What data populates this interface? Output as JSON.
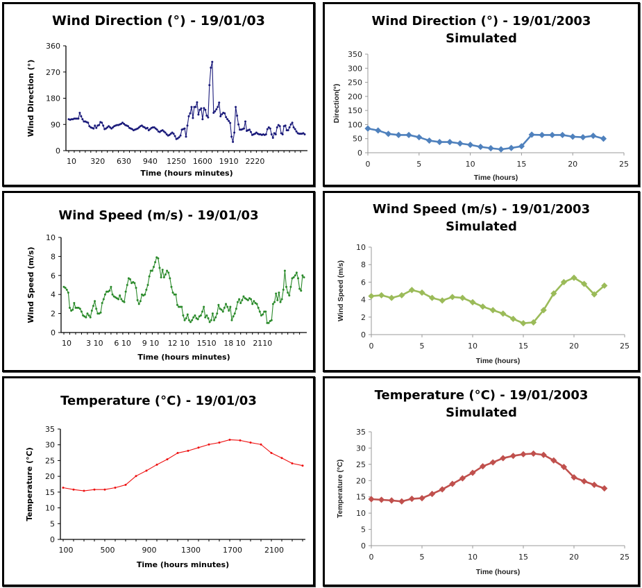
{
  "chart_data": [
    {
      "id": "wd_obs",
      "type": "line",
      "title": "Wind Direction (°) - 19/01/03",
      "xlabel": "Time (hours minutes)",
      "ylabel": "Wind Direction (°)",
      "ylim": [
        0,
        360
      ],
      "yticks": [
        0,
        90,
        180,
        270,
        360
      ],
      "xtick_labels": [
        "10",
        "320",
        "630",
        "940",
        "1250",
        "1600",
        "1910",
        "2220"
      ],
      "color": "#1a1a7a",
      "interval_minutes": 10,
      "series": [
        {
          "name": "Observed",
          "values": [
            108,
            106,
            108,
            108,
            110,
            110,
            110,
            110,
            130,
            118,
            108,
            100,
            100,
            98,
            96,
            84,
            80,
            78,
            76,
            86,
            78,
            86,
            88,
            98,
            96,
            86,
            74,
            76,
            80,
            84,
            80,
            76,
            80,
            84,
            86,
            88,
            88,
            90,
            92,
            96,
            92,
            88,
            86,
            84,
            78,
            76,
            74,
            70,
            72,
            74,
            76,
            80,
            84,
            86,
            82,
            80,
            76,
            78,
            70,
            74,
            78,
            80,
            80,
            76,
            72,
            66,
            64,
            68,
            70,
            66,
            62,
            56,
            52,
            54,
            58,
            62,
            58,
            50,
            40,
            42,
            46,
            52,
            72,
            74,
            76,
            48,
            86,
            118,
            128,
            150,
            112,
            150,
            150,
            166,
            124,
            140,
            145,
            108,
            146,
            140,
            120,
            114,
            225,
            285,
            305,
            130,
            135,
            142,
            150,
            165,
            118,
            125,
            130,
            128,
            115,
            108,
            102,
            95,
            48,
            30,
            62,
            150,
            120,
            90,
            72,
            72,
            74,
            76,
            100,
            68,
            70,
            72,
            64,
            54,
            56,
            58,
            62,
            58,
            56,
            56,
            54,
            56,
            54,
            56,
            74,
            80,
            76,
            56,
            44,
            60,
            56,
            80,
            88,
            84,
            60,
            56,
            84,
            86,
            70,
            70,
            80,
            90,
            96,
            80,
            74,
            66,
            60,
            58,
            58,
            58,
            60,
            56
          ]
        }
      ]
    },
    {
      "id": "wd_sim",
      "type": "line",
      "title": "Wind Direction (°) - 19/01/2003",
      "subtitle": "Simulated",
      "xlabel": "Time (hours)",
      "ylabel": "Direction(°)",
      "xlim": [
        0,
        25
      ],
      "ylim": [
        0,
        350
      ],
      "xticks": [
        0,
        5,
        10,
        15,
        20,
        25
      ],
      "yticks": [
        0,
        50,
        100,
        150,
        200,
        250,
        300,
        350
      ],
      "color": "#4f81bd",
      "x": [
        0,
        1,
        2,
        3,
        4,
        5,
        6,
        7,
        8,
        9,
        10,
        11,
        12,
        13,
        14,
        15,
        16,
        17,
        18,
        19,
        20,
        21,
        22,
        23
      ],
      "series": [
        {
          "name": "Simulated",
          "values": [
            86,
            79,
            67,
            63,
            63,
            55,
            43,
            38,
            38,
            33,
            28,
            21,
            16,
            12,
            17,
            23,
            64,
            63,
            63,
            63,
            57,
            55,
            60,
            50
          ]
        }
      ]
    },
    {
      "id": "ws_obs",
      "type": "line",
      "title": "Wind Speed (m/s) - 19/01/03",
      "xlabel": "Time (hours minutes)",
      "ylabel": "Wind Speed (m/s)",
      "ylim": [
        0,
        10
      ],
      "yticks": [
        0,
        2,
        4,
        6,
        8,
        10
      ],
      "xtick_labels": [
        "10",
        "3 10",
        "6 10",
        "9 10",
        "12 10",
        "1510",
        "18 10",
        "2110"
      ],
      "color": "#2a8a2a",
      "interval_minutes": 10,
      "series": [
        {
          "name": "Observed",
          "values": [
            4.8,
            4.7,
            4.5,
            4.2,
            2.6,
            2.3,
            2.4,
            3.1,
            2.6,
            2.6,
            2.6,
            2.5,
            2.2,
            1.8,
            1.7,
            1.6,
            2.0,
            1.8,
            1.6,
            2.3,
            2.8,
            3.3,
            2.5,
            2.0,
            2.0,
            2.1,
            3.1,
            3.5,
            4.0,
            4.3,
            4.3,
            4.4,
            4.8,
            4.0,
            3.8,
            3.7,
            3.6,
            3.5,
            3.9,
            3.5,
            3.3,
            3.2,
            4.3,
            5.0,
            5.7,
            5.6,
            5.2,
            5.3,
            5.2,
            4.7,
            3.4,
            3.0,
            3.3,
            4.0,
            3.9,
            4.0,
            4.5,
            5.0,
            5.9,
            6.5,
            6.5,
            6.9,
            7.4,
            7.9,
            7.8,
            6.8,
            5.8,
            6.6,
            5.8,
            6.1,
            6.5,
            6.3,
            5.7,
            4.8,
            4.2,
            4.0,
            4.0,
            2.9,
            2.7,
            2.7,
            2.7,
            1.8,
            1.3,
            1.5,
            1.9,
            1.3,
            1.1,
            1.3,
            1.6,
            1.8,
            1.5,
            1.4,
            1.7,
            1.8,
            2.2,
            2.7,
            1.6,
            1.8,
            1.5,
            1.1,
            1.3,
            2.0,
            1.3,
            1.6,
            2.0,
            2.9,
            2.5,
            2.4,
            2.2,
            2.6,
            3.0,
            2.7,
            2.3,
            2.7,
            1.3,
            1.7,
            2.0,
            2.5,
            3.2,
            3.5,
            3.1,
            3.4,
            3.8,
            3.6,
            3.5,
            3.4,
            3.6,
            3.5,
            3.0,
            3.3,
            3.1,
            3.0,
            2.6,
            2.2,
            1.8,
            1.9,
            2.2,
            2.2,
            1.0,
            1.0,
            1.2,
            1.3,
            3.0,
            3.2,
            4.1,
            3.4,
            4.2,
            3.2,
            3.5,
            4.5,
            6.5,
            4.8,
            4.2,
            3.9,
            4.8,
            5.7,
            5.8,
            6.0,
            6.3,
            5.7,
            4.6,
            4.4,
            6.0,
            5.8
          ]
        }
      ]
    },
    {
      "id": "ws_sim",
      "type": "line",
      "title": "Wind Speed (m/s) - 19/01/2003",
      "subtitle": "Simulated",
      "xlabel": "Time (hours)",
      "ylabel": "Wind Speed (m/s)",
      "xlim": [
        0,
        25
      ],
      "ylim": [
        0,
        10
      ],
      "xticks": [
        0,
        5,
        10,
        15,
        20,
        25
      ],
      "yticks": [
        0,
        2,
        4,
        6,
        8,
        10
      ],
      "color": "#9bbb59",
      "x": [
        0,
        1,
        2,
        3,
        4,
        5,
        6,
        7,
        8,
        9,
        10,
        11,
        12,
        13,
        14,
        15,
        16,
        17,
        18,
        19,
        20,
        21,
        22,
        23
      ],
      "series": [
        {
          "name": "Simulated",
          "values": [
            4.4,
            4.5,
            4.2,
            4.5,
            5.1,
            4.8,
            4.2,
            3.9,
            4.3,
            4.2,
            3.7,
            3.2,
            2.8,
            2.4,
            1.8,
            1.3,
            1.4,
            2.8,
            4.7,
            6.0,
            6.5,
            5.8,
            4.6,
            5.6
          ]
        }
      ]
    },
    {
      "id": "t_obs",
      "type": "line",
      "title": "Temperature (°C) - 19/01/03",
      "xlabel": "Time (hours minutes)",
      "ylabel": "Temperature (°C)",
      "ylim": [
        0,
        35
      ],
      "yticks": [
        0,
        5,
        10,
        15,
        20,
        25,
        30,
        35
      ],
      "xtick_labels": [
        "100",
        "500",
        "900",
        "1300",
        "1700",
        "2100"
      ],
      "color": "#ee1111",
      "x": [
        100,
        200,
        300,
        400,
        500,
        600,
        700,
        800,
        900,
        1000,
        1100,
        1200,
        1300,
        1400,
        1500,
        1600,
        1700,
        1800,
        1900,
        2000,
        2100,
        2200,
        2300,
        2400
      ],
      "series": [
        {
          "name": "Observed",
          "values": [
            16.4,
            15.8,
            15.4,
            15.8,
            15.8,
            16.4,
            17.3,
            20.1,
            21.8,
            23.7,
            25.4,
            27.4,
            28.1,
            29.1,
            30.1,
            30.7,
            31.6,
            31.4,
            30.7,
            30.1,
            27.4,
            25.8,
            24.1,
            23.4
          ]
        }
      ]
    },
    {
      "id": "t_sim",
      "type": "line",
      "title": "Temperature (°C) - 19/01/2003",
      "subtitle": "Simulated",
      "xlabel": "Time (hours)",
      "ylabel": "Temperature (°C)",
      "xlim": [
        0,
        25
      ],
      "ylim": [
        0,
        35
      ],
      "xticks": [
        0,
        5,
        10,
        15,
        20,
        25
      ],
      "yticks": [
        0,
        5,
        10,
        15,
        20,
        25,
        30,
        35
      ],
      "color": "#c0504d",
      "x": [
        0,
        1,
        2,
        3,
        4,
        5,
        6,
        7,
        8,
        9,
        10,
        11,
        12,
        13,
        14,
        15,
        16,
        17,
        18,
        19,
        20,
        21,
        22,
        23
      ],
      "series": [
        {
          "name": "Simulated",
          "values": [
            14.3,
            14.1,
            13.9,
            13.6,
            14.4,
            14.6,
            15.9,
            17.3,
            19.0,
            20.7,
            22.4,
            24.4,
            25.6,
            26.9,
            27.6,
            28.1,
            28.3,
            27.9,
            26.2,
            24.2,
            21.0,
            19.8,
            18.7,
            17.6
          ]
        }
      ]
    }
  ]
}
